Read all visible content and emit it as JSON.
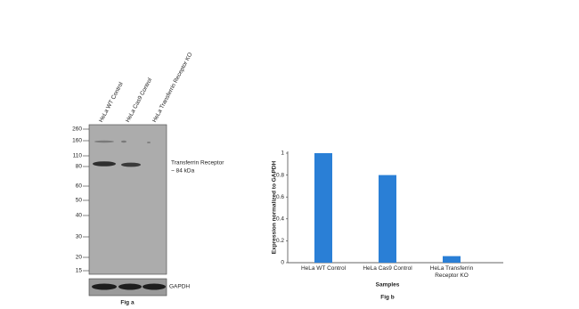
{
  "blot": {
    "lanes": [
      "HeLa WT Control",
      "HeLa Cas9 Control",
      "HeLa Transferrin Receptor KO"
    ],
    "markers": [
      "260",
      "160",
      "110",
      "80",
      "60",
      "50",
      "40",
      "30",
      "20",
      "15"
    ],
    "band_label": "Transferrin Receptor",
    "band_size": "~ 84 kDa",
    "loading_label": "GAPDH",
    "caption": "Fig a"
  },
  "chart_data": {
    "type": "bar",
    "categories": [
      "HeLa WT Control",
      "HeLa Cas9 Control",
      "HeLa Transferrin Receptor KO"
    ],
    "values": [
      1,
      0.8,
      0.06
    ],
    "color": "#2a7fd6",
    "ylim": [
      0,
      1
    ],
    "yticks": [
      0,
      0.2,
      0.4,
      0.6,
      0.8,
      1
    ],
    "x_label": "Samples",
    "y_label": "Expression normalized to GAPDH",
    "caption": "Fig b"
  }
}
